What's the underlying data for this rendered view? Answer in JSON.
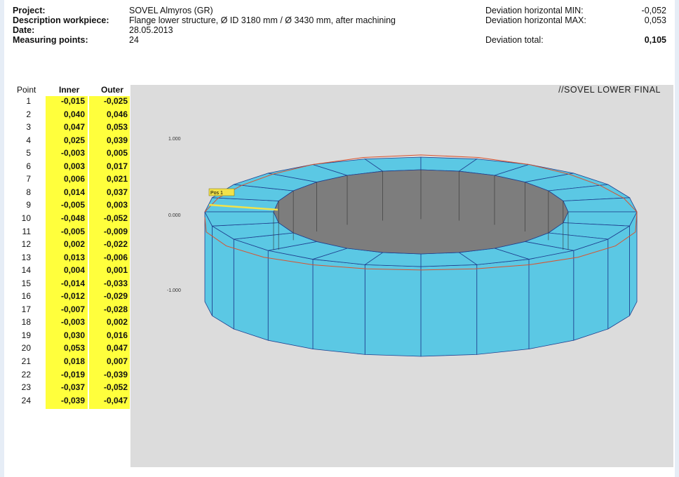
{
  "header": {
    "project_label": "Project:",
    "project_value": "SOVEL Almyros (GR)",
    "desc_label": "Description workpiece:",
    "desc_value": "Flange lower structure, Ø ID 3180 mm / Ø 3430 mm, after machining",
    "date_label": "Date:",
    "date_value": "28.05.2013",
    "points_label": "Measuring points:",
    "points_value": "24",
    "dev_min_label": "Deviation horizontal MIN:",
    "dev_min_value": "-0,052",
    "dev_max_label": "Deviation horizontal MAX:",
    "dev_max_value": "0,053",
    "dev_total_label": "Deviation total:",
    "dev_total_value": "0,105"
  },
  "table": {
    "col_point": "Point",
    "col_inner": "Inner",
    "col_outer": "Outer",
    "rows": [
      {
        "p": "1",
        "i": "-0,015",
        "o": "-0,025"
      },
      {
        "p": "2",
        "i": "0,040",
        "o": "0,046"
      },
      {
        "p": "3",
        "i": "0,047",
        "o": "0,053"
      },
      {
        "p": "4",
        "i": "0,025",
        "o": "0,039"
      },
      {
        "p": "5",
        "i": "-0,003",
        "o": "0,005"
      },
      {
        "p": "6",
        "i": "0,003",
        "o": "0,017"
      },
      {
        "p": "7",
        "i": "0,006",
        "o": "0,021"
      },
      {
        "p": "8",
        "i": "0,014",
        "o": "0,037"
      },
      {
        "p": "9",
        "i": "-0,005",
        "o": "0,003"
      },
      {
        "p": "10",
        "i": "-0,048",
        "o": "-0,052"
      },
      {
        "p": "11",
        "i": "-0,005",
        "o": "-0,009"
      },
      {
        "p": "12",
        "i": "0,002",
        "o": "-0,022"
      },
      {
        "p": "13",
        "i": "0,013",
        "o": "-0,006"
      },
      {
        "p": "14",
        "i": "0,004",
        "o": "0,001"
      },
      {
        "p": "15",
        "i": "-0,014",
        "o": "-0,033"
      },
      {
        "p": "16",
        "i": "-0,012",
        "o": "-0,029"
      },
      {
        "p": "17",
        "i": "-0,007",
        "o": "-0,028"
      },
      {
        "p": "18",
        "i": "-0,003",
        "o": "0,002"
      },
      {
        "p": "19",
        "i": "0,030",
        "o": "0,016"
      },
      {
        "p": "20",
        "i": "0,053",
        "o": "0,047"
      },
      {
        "p": "21",
        "i": "0,018",
        "o": "0,007"
      },
      {
        "p": "22",
        "i": "-0,019",
        "o": "-0,039"
      },
      {
        "p": "23",
        "i": "-0,037",
        "o": "-0,052"
      },
      {
        "p": "24",
        "i": "-0,039",
        "o": "-0,047"
      }
    ]
  },
  "plot": {
    "title": "//SOVEL LOWER FINAL",
    "y_labels": [
      "1.000",
      "0.000",
      "-1.000"
    ],
    "marker_label": "Pos 1",
    "colors": {
      "ring_fill": "#5bc8e4",
      "ring_edge": "#1f3f8f",
      "inner_fill": "#7d7d7d",
      "red_line": "#d9532e",
      "yellow": "#f2e24a",
      "table_highlight": "#ffff3c"
    }
  }
}
